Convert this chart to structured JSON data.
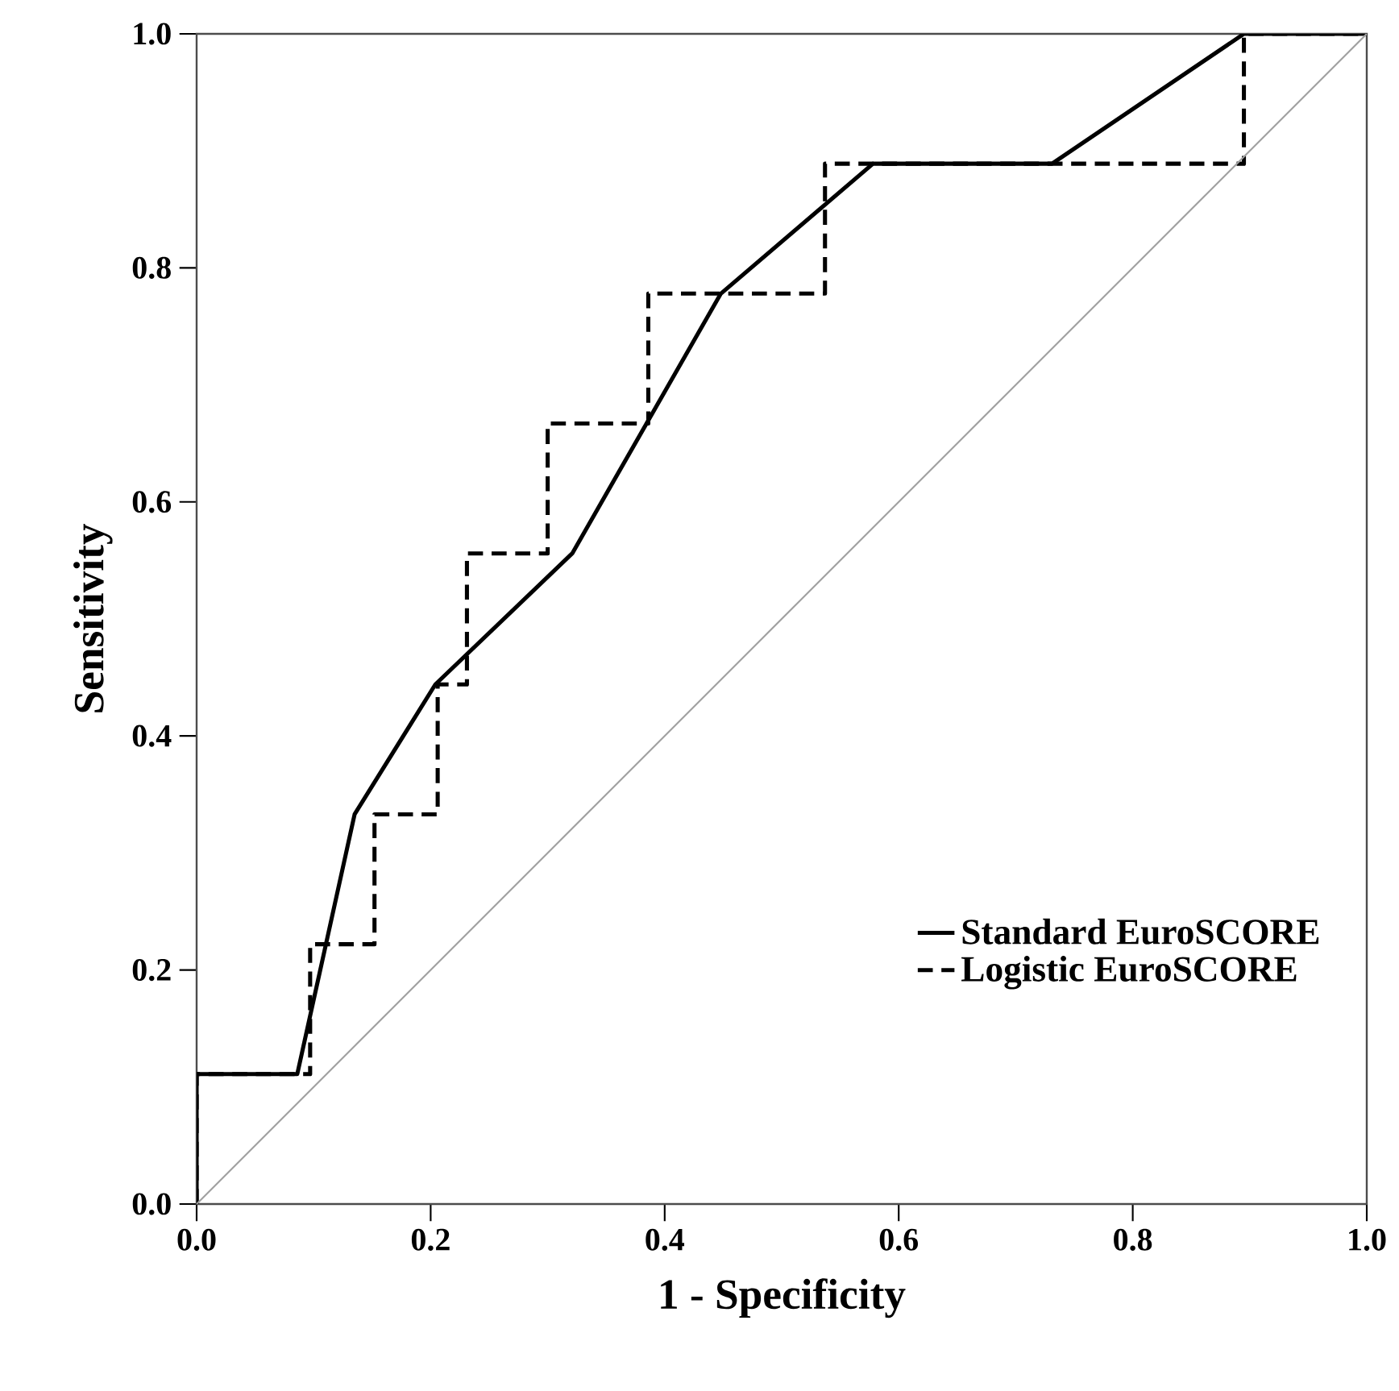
{
  "chart_data": {
    "type": "line",
    "xlabel": "1 - Specificity",
    "ylabel": "Sensitivity",
    "xlim": [
      0,
      1
    ],
    "ylim": [
      0,
      1
    ],
    "xticks": [
      {
        "value": 0,
        "label": "0.0"
      },
      {
        "value": 0.2,
        "label": "0.2"
      },
      {
        "value": 0.4,
        "label": "0.4"
      },
      {
        "value": 0.6,
        "label": "0.6"
      },
      {
        "value": 0.8,
        "label": "0.8"
      },
      {
        "value": 1,
        "label": "1.0"
      }
    ],
    "yticks": [
      {
        "value": 0,
        "label": "0.0"
      },
      {
        "value": 0.2,
        "label": "0.2"
      },
      {
        "value": 0.4,
        "label": "0.4"
      },
      {
        "value": 0.6,
        "label": "0.6"
      },
      {
        "value": 0.8,
        "label": "0.8"
      },
      {
        "value": 1,
        "label": "1.0"
      }
    ],
    "grid": false,
    "legend": "bottom right",
    "marker": "none",
    "series": [
      {
        "name": "Standard EuroSCORE",
        "color": "#000000",
        "line_style": "solid",
        "x": [
          0,
          0,
          0.086,
          0.135,
          0.204,
          0.321,
          0.448,
          0.578,
          0.731,
          0.895,
          1
        ],
        "values": [
          0,
          0.111,
          0.111,
          0.333,
          0.444,
          0.556,
          0.778,
          0.889,
          0.889,
          1,
          1
        ]
      },
      {
        "name": "Logistic EuroSCORE",
        "color": "#000000",
        "line_style": "dashed",
        "x": [
          0,
          0,
          0.097,
          0.097,
          0.152,
          0.152,
          0.206,
          0.206,
          0.231,
          0.231,
          0.3,
          0.3,
          0.386,
          0.386,
          0.537,
          0.537,
          0.895,
          0.895,
          1
        ],
        "values": [
          0,
          0.111,
          0.111,
          0.222,
          0.222,
          0.333,
          0.333,
          0.444,
          0.444,
          0.556,
          0.556,
          0.667,
          0.667,
          0.778,
          0.778,
          0.889,
          0.889,
          1,
          1
        ]
      },
      {
        "color": "#a0a0a0",
        "line_style": "solid",
        "x": [
          0,
          1
        ],
        "values": [
          0,
          1
        ]
      }
    ]
  }
}
